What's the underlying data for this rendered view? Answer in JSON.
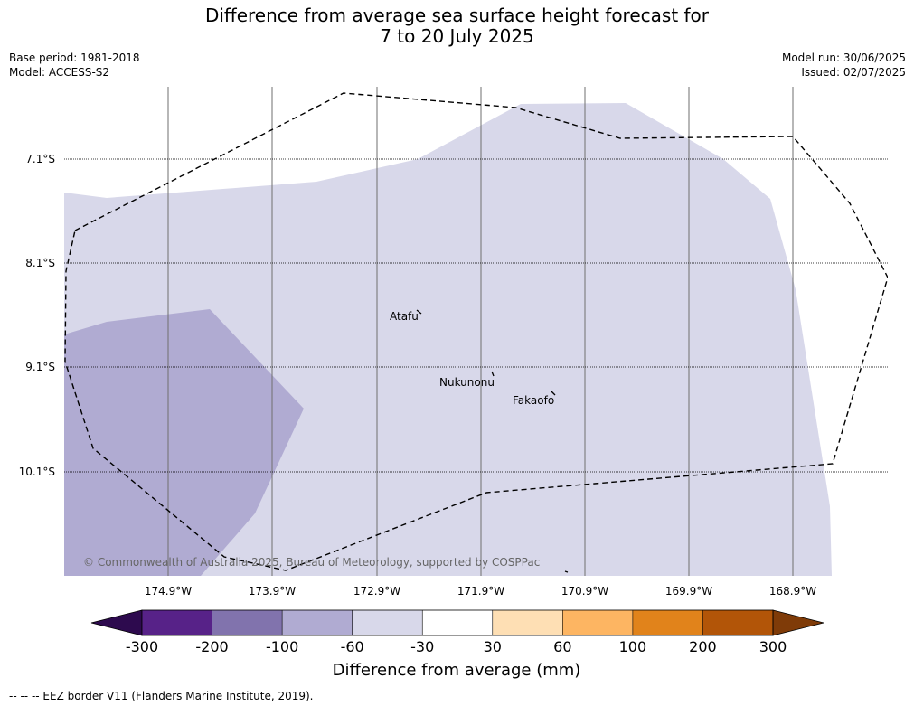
{
  "title_line1": "Difference from average sea surface height forecast for",
  "title_line2": "7 to 20 July 2025",
  "base_period": "Base period: 1981-2018",
  "model": "Model: ACCESS-S2",
  "model_run": "Model run: 30/06/2025",
  "issued": "Issued: 02/07/2025",
  "latitudes": [
    "7.1°S",
    "8.1°S",
    "9.1°S",
    "10.1°S"
  ],
  "longitudes": [
    "174.9°W",
    "173.9°W",
    "172.9°W",
    "171.9°W",
    "170.9°W",
    "169.9°W",
    "168.9°W"
  ],
  "places": [
    "Atafu",
    "Nukunonu",
    "Fakaofo"
  ],
  "copyright": "© Commonwealth of Australia 2025, Bureau of Meteorology, supported by COSPPac",
  "colorbar": {
    "labels": [
      "-300",
      "-200",
      "-100",
      "-60",
      "-30",
      "30",
      "60",
      "100",
      "200",
      "300"
    ],
    "colors": [
      "#2d0a4e",
      "#572288",
      "#8173ad",
      "#b0abd2",
      "#d8d8ea",
      "#ffffff",
      "#fedfb4",
      "#fdb562",
      "#e1831b",
      "#b25508",
      "#7f3b08"
    ],
    "title": "Difference from average (mm)"
  },
  "footer": "--  --  -- EEZ border V11 (Flanders Marine Institute, 2019)."
}
